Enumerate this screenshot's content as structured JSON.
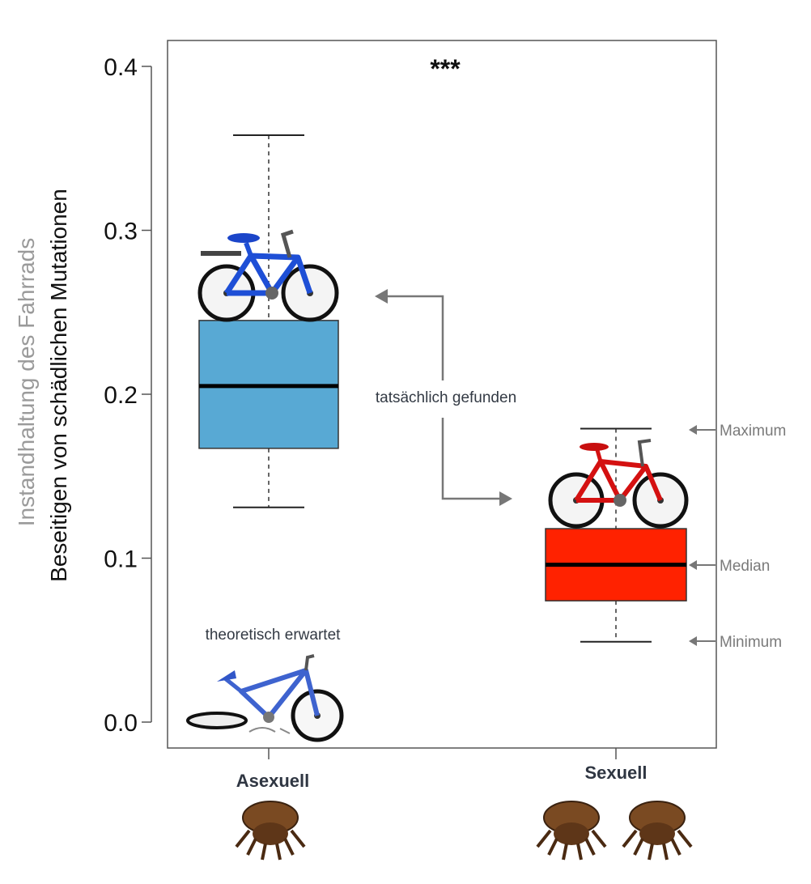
{
  "chart_data": {
    "type": "box",
    "ylabel_gray": "Instandhaltung des Fahrrads",
    "ylabel_black": "Beseitigen von schädlichen Mutationen",
    "ylim": [
      0.0,
      0.4
    ],
    "yticks": [
      "0.0",
      "0.1",
      "0.2",
      "0.3",
      "0.4"
    ],
    "ytick_values": [
      0.0,
      0.1,
      0.2,
      0.3,
      0.4
    ],
    "significance": "***",
    "categories": [
      "Asexuell",
      "Sexuell"
    ],
    "boxes": [
      {
        "name": "Asexuell",
        "min": 0.131,
        "q1": 0.167,
        "median": 0.205,
        "q3": 0.245,
        "max": 0.358,
        "color": "#58a9d4"
      },
      {
        "name": "Sexuell",
        "min": 0.049,
        "q1": 0.074,
        "median": 0.096,
        "q3": 0.118,
        "max": 0.179,
        "color": "#ff2200"
      }
    ],
    "annotations": {
      "found": "tatsächlich gefunden",
      "expected": "theoretisch erwartet"
    },
    "legend": {
      "maximum": "Maximum",
      "median": "Median",
      "minimum": "Minimum"
    },
    "icons": [
      "blue-bicycle-icon",
      "red-bicycle-icon",
      "broken-bicycle-icon",
      "beetle-icon"
    ]
  }
}
